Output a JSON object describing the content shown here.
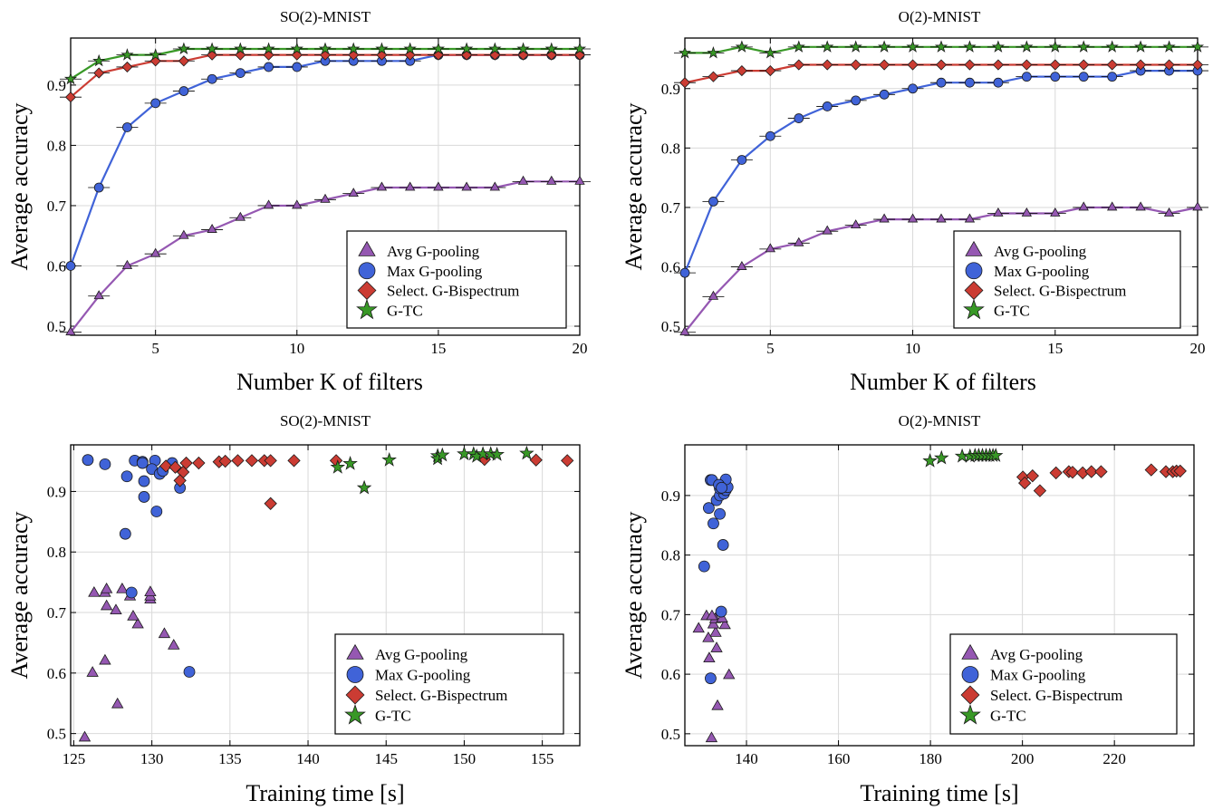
{
  "colors": {
    "avg": "#9558b2",
    "max": "#4063d8",
    "bisp": "#cb3c33",
    "gtc": "#389826"
  },
  "chart_data": [
    {
      "type": "line",
      "title": "SO(2)-MNIST",
      "xlabel": "Number K of filters",
      "ylabel": "Average accuracy",
      "xlim": [
        2,
        20
      ],
      "ylim": [
        0.485,
        0.978
      ],
      "xticks": [
        5,
        10,
        15,
        20
      ],
      "yticks": [
        0.5,
        0.6,
        0.7,
        0.8,
        0.9
      ],
      "grid": true,
      "legend": "bottom-right",
      "x": [
        2,
        3,
        4,
        5,
        6,
        7,
        8,
        9,
        10,
        11,
        12,
        13,
        14,
        15,
        16,
        17,
        18,
        19,
        20
      ],
      "series": [
        {
          "name": "Avg G-pooling",
          "marker": "triangle",
          "values": [
            0.49,
            0.55,
            0.6,
            0.62,
            0.65,
            0.66,
            0.68,
            0.7,
            0.7,
            0.71,
            0.72,
            0.73,
            0.73,
            0.73,
            0.73,
            0.73,
            0.74,
            0.74,
            0.74
          ]
        },
        {
          "name": "Max G-pooling",
          "marker": "circle",
          "values": [
            0.6,
            0.73,
            0.83,
            0.87,
            0.89,
            0.91,
            0.92,
            0.93,
            0.93,
            0.94,
            0.94,
            0.94,
            0.94,
            0.95,
            0.95,
            0.95,
            0.95,
            0.95,
            0.95
          ]
        },
        {
          "name": "Select. G-Bispectrum",
          "marker": "diamond",
          "values": [
            0.88,
            0.92,
            0.93,
            0.94,
            0.94,
            0.95,
            0.95,
            0.95,
            0.95,
            0.95,
            0.95,
            0.95,
            0.95,
            0.95,
            0.95,
            0.95,
            0.95,
            0.95,
            0.95
          ]
        },
        {
          "name": "G-TC",
          "marker": "star",
          "values": [
            0.91,
            0.94,
            0.95,
            0.95,
            0.96,
            0.96,
            0.96,
            0.96,
            0.96,
            0.96,
            0.96,
            0.96,
            0.96,
            0.96,
            0.96,
            0.96,
            0.96,
            0.96,
            0.96
          ]
        }
      ]
    },
    {
      "type": "line",
      "title": "O(2)-MNIST",
      "xlabel": "Number K of filters",
      "ylabel": "Average accuracy",
      "xlim": [
        2,
        20
      ],
      "ylim": [
        0.485,
        0.985
      ],
      "xticks": [
        5,
        10,
        15,
        20
      ],
      "yticks": [
        0.5,
        0.6,
        0.7,
        0.8,
        0.9
      ],
      "grid": true,
      "legend": "bottom-right",
      "x": [
        2,
        3,
        4,
        5,
        6,
        7,
        8,
        9,
        10,
        11,
        12,
        13,
        14,
        15,
        16,
        17,
        18,
        19,
        20
      ],
      "series": [
        {
          "name": "Avg G-pooling",
          "marker": "triangle",
          "values": [
            0.49,
            0.55,
            0.6,
            0.63,
            0.64,
            0.66,
            0.67,
            0.68,
            0.68,
            0.68,
            0.68,
            0.69,
            0.69,
            0.69,
            0.7,
            0.7,
            0.7,
            0.69,
            0.7
          ]
        },
        {
          "name": "Max G-pooling",
          "marker": "circle",
          "values": [
            0.59,
            0.71,
            0.78,
            0.82,
            0.85,
            0.87,
            0.88,
            0.89,
            0.9,
            0.91,
            0.91,
            0.91,
            0.92,
            0.92,
            0.92,
            0.92,
            0.93,
            0.93,
            0.93
          ]
        },
        {
          "name": "Select. G-Bispectrum",
          "marker": "diamond",
          "values": [
            0.91,
            0.92,
            0.93,
            0.93,
            0.94,
            0.94,
            0.94,
            0.94,
            0.94,
            0.94,
            0.94,
            0.94,
            0.94,
            0.94,
            0.94,
            0.94,
            0.94,
            0.94,
            0.94
          ]
        },
        {
          "name": "G-TC",
          "marker": "star",
          "values": [
            0.96,
            0.96,
            0.97,
            0.96,
            0.97,
            0.97,
            0.97,
            0.97,
            0.97,
            0.97,
            0.97,
            0.97,
            0.97,
            0.97,
            0.97,
            0.97,
            0.97,
            0.97,
            0.97
          ]
        }
      ]
    },
    {
      "type": "scatter",
      "title": "SO(2)-MNIST",
      "xlabel": "Training time [s]",
      "ylabel": "Average accuracy",
      "xlim": [
        124.8,
        157.4
      ],
      "ylim": [
        0.48,
        0.977
      ],
      "xticks": [
        125,
        130,
        135,
        140,
        145,
        150,
        155
      ],
      "yticks": [
        0.5,
        0.6,
        0.7,
        0.8,
        0.9
      ],
      "grid": true,
      "legend": "bottom-right",
      "series": [
        {
          "name": "Avg G-pooling",
          "marker": "triangle",
          "points": [
            [
              125.7,
              0.493
            ],
            [
              127.8,
              0.548
            ],
            [
              126.2,
              0.6
            ],
            [
              127.0,
              0.62
            ],
            [
              131.4,
              0.645
            ],
            [
              130.8,
              0.664
            ],
            [
              129.1,
              0.68
            ],
            [
              128.8,
              0.693
            ],
            [
              127.7,
              0.703
            ],
            [
              127.1,
              0.71
            ],
            [
              129.9,
              0.721
            ],
            [
              129.9,
              0.726
            ],
            [
              128.6,
              0.726
            ],
            [
              126.3,
              0.732
            ],
            [
              127.0,
              0.732
            ],
            [
              128.1,
              0.738
            ],
            [
              127.1,
              0.738
            ],
            [
              129.9,
              0.733
            ]
          ]
        },
        {
          "name": "Max G-pooling",
          "marker": "circle",
          "points": [
            [
              125.9,
              0.952
            ],
            [
              127.0,
              0.945
            ],
            [
              128.9,
              0.951
            ],
            [
              129.4,
              0.949
            ],
            [
              129.4,
              0.947
            ],
            [
              130.2,
              0.951
            ],
            [
              131.3,
              0.947
            ],
            [
              128.4,
              0.925
            ],
            [
              130.0,
              0.937
            ],
            [
              130.5,
              0.929
            ],
            [
              130.7,
              0.934
            ],
            [
              129.5,
              0.917
            ],
            [
              131.8,
              0.906
            ],
            [
              129.5,
              0.891
            ],
            [
              130.3,
              0.867
            ],
            [
              128.3,
              0.83
            ],
            [
              128.7,
              0.733
            ],
            [
              132.4,
              0.602
            ]
          ]
        },
        {
          "name": "Select. G-Bispectrum",
          "marker": "diamond",
          "points": [
            [
              130.9,
              0.942
            ],
            [
              131.5,
              0.94
            ],
            [
              132.0,
              0.932
            ],
            [
              131.8,
              0.918
            ],
            [
              132.2,
              0.947
            ],
            [
              133.0,
              0.947
            ],
            [
              134.3,
              0.949
            ],
            [
              134.7,
              0.95
            ],
            [
              135.5,
              0.951
            ],
            [
              136.4,
              0.951
            ],
            [
              137.2,
              0.951
            ],
            [
              137.6,
              0.951
            ],
            [
              137.6,
              0.88
            ],
            [
              139.1,
              0.951
            ],
            [
              141.8,
              0.951
            ],
            [
              151.3,
              0.953
            ],
            [
              154.6,
              0.952
            ],
            [
              156.6,
              0.951
            ]
          ]
        },
        {
          "name": "G-TC",
          "marker": "star",
          "points": [
            [
              141.9,
              0.94
            ],
            [
              142.7,
              0.946
            ],
            [
              143.6,
              0.906
            ],
            [
              145.2,
              0.952
            ],
            [
              148.3,
              0.959
            ],
            [
              148.3,
              0.954
            ],
            [
              148.6,
              0.96
            ],
            [
              150.0,
              0.962
            ],
            [
              150.6,
              0.962
            ],
            [
              150.8,
              0.958
            ],
            [
              151.2,
              0.962
            ],
            [
              151.7,
              0.962
            ],
            [
              152.1,
              0.961
            ],
            [
              154.0,
              0.963
            ]
          ]
        }
      ]
    },
    {
      "type": "scatter",
      "title": "O(2)-MNIST",
      "xlabel": "Training time [s]",
      "ylabel": "Average accuracy",
      "xlim": [
        126.6,
        237.3
      ],
      "ylim": [
        0.48,
        0.985
      ],
      "xticks": [
        140,
        160,
        180,
        200,
        220
      ],
      "yticks": [
        0.5,
        0.6,
        0.7,
        0.8,
        0.9
      ],
      "grid": true,
      "legend": "bottom-right",
      "series": [
        {
          "name": "Avg G-pooling",
          "marker": "triangle",
          "points": [
            [
              132.4,
              0.492
            ],
            [
              133.7,
              0.546
            ],
            [
              136.2,
              0.598
            ],
            [
              131.9,
              0.626
            ],
            [
              133.5,
              0.643
            ],
            [
              133.3,
              0.669
            ],
            [
              131.7,
              0.66
            ],
            [
              129.6,
              0.676
            ],
            [
              135.3,
              0.682
            ],
            [
              132.8,
              0.683
            ],
            [
              133.2,
              0.692
            ],
            [
              134.7,
              0.693
            ],
            [
              131.3,
              0.697
            ],
            [
              132.5,
              0.697
            ]
          ]
        },
        {
          "name": "Max G-pooling",
          "marker": "circle",
          "points": [
            [
              132.2,
              0.593
            ],
            [
              134.5,
              0.705
            ],
            [
              130.8,
              0.781
            ],
            [
              134.9,
              0.817
            ],
            [
              132.8,
              0.853
            ],
            [
              134.2,
              0.869
            ],
            [
              131.8,
              0.879
            ],
            [
              133.5,
              0.892
            ],
            [
              134.2,
              0.9
            ],
            [
              135.1,
              0.903
            ],
            [
              135.5,
              0.909
            ],
            [
              134.2,
              0.912
            ],
            [
              135.9,
              0.914
            ],
            [
              132.2,
              0.926
            ],
            [
              132.5,
              0.926
            ],
            [
              135.5,
              0.927
            ],
            [
              134.0,
              0.918
            ],
            [
              134.6,
              0.913
            ]
          ]
        },
        {
          "name": "Select. G-Bispectrum",
          "marker": "diamond",
          "points": [
            [
              200.1,
              0.931
            ],
            [
              200.5,
              0.921
            ],
            [
              202.2,
              0.933
            ],
            [
              203.8,
              0.908
            ],
            [
              207.3,
              0.938
            ],
            [
              210.1,
              0.94
            ],
            [
              210.9,
              0.939
            ],
            [
              213.1,
              0.938
            ],
            [
              215.0,
              0.94
            ],
            [
              217.1,
              0.94
            ],
            [
              228.0,
              0.943
            ],
            [
              231.2,
              0.94
            ],
            [
              232.7,
              0.94
            ],
            [
              233.5,
              0.941
            ],
            [
              234.3,
              0.941
            ]
          ]
        },
        {
          "name": "G-TC",
          "marker": "star",
          "points": [
            [
              179.9,
              0.958
            ],
            [
              182.4,
              0.963
            ],
            [
              186.9,
              0.966
            ],
            [
              188.6,
              0.966
            ],
            [
              189.7,
              0.967
            ],
            [
              190.5,
              0.967
            ],
            [
              191.3,
              0.967
            ],
            [
              192.1,
              0.967
            ],
            [
              192.9,
              0.967
            ],
            [
              193.6,
              0.967
            ],
            [
              194.2,
              0.967
            ]
          ]
        }
      ]
    }
  ]
}
